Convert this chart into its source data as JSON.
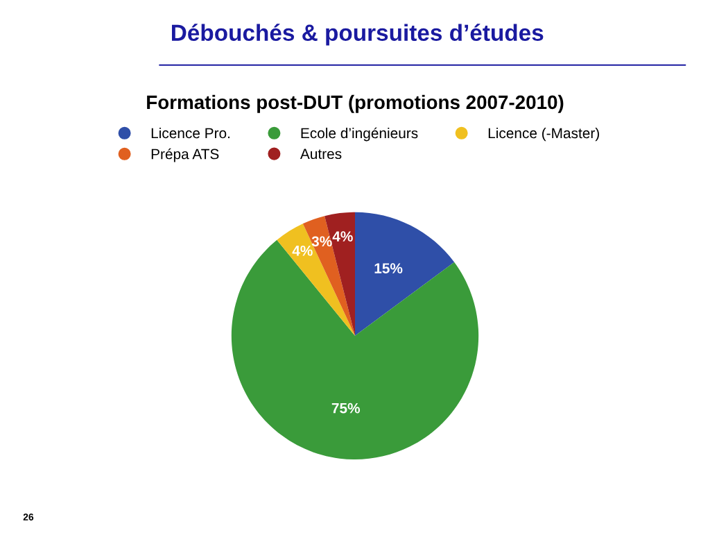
{
  "chart_data": {
    "type": "pie",
    "title": "Débouchés & poursuites d’études",
    "subtitle": "Formations post-DUT (promotions 2007-2010)",
    "categories": [
      "Licence Pro.",
      "Ecole d’ingénieurs",
      "Licence (-Master)",
      "Prépa ATS",
      "Autres"
    ],
    "values": [
      15,
      75,
      4,
      3,
      4
    ],
    "value_labels": [
      "15%",
      "75%",
      "4%",
      "3%",
      "4%"
    ],
    "colors": [
      "#2f4fa8",
      "#3a9b3a",
      "#f0c020",
      "#e06020",
      "#a02020"
    ],
    "legend": "top",
    "annotations": [
      "26"
    ]
  }
}
